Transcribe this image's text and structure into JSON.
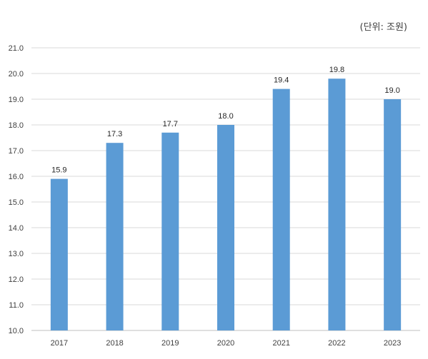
{
  "chart_data": {
    "type": "bar",
    "title": "",
    "unit_note": "(단위: 조원)",
    "xlabel": "",
    "ylabel": "",
    "categories": [
      "2017",
      "2018",
      "2019",
      "2020",
      "2021",
      "2022",
      "2023"
    ],
    "series": [
      {
        "values": [
          15.9,
          17.3,
          17.7,
          18.0,
          19.4,
          19.8,
          19.0
        ],
        "color": "#5b9bd5"
      }
    ],
    "data_labels": [
      "15.9",
      "17.3",
      "17.7",
      "18.0",
      "19.4",
      "19.8",
      "19.0"
    ],
    "ylim": [
      10.0,
      21.0
    ],
    "yticks": [
      "10.0",
      "11.0",
      "12.0",
      "13.0",
      "14.0",
      "15.0",
      "16.0",
      "17.0",
      "18.0",
      "19.0",
      "20.0",
      "21.0"
    ],
    "grid": true,
    "legend": "none"
  }
}
